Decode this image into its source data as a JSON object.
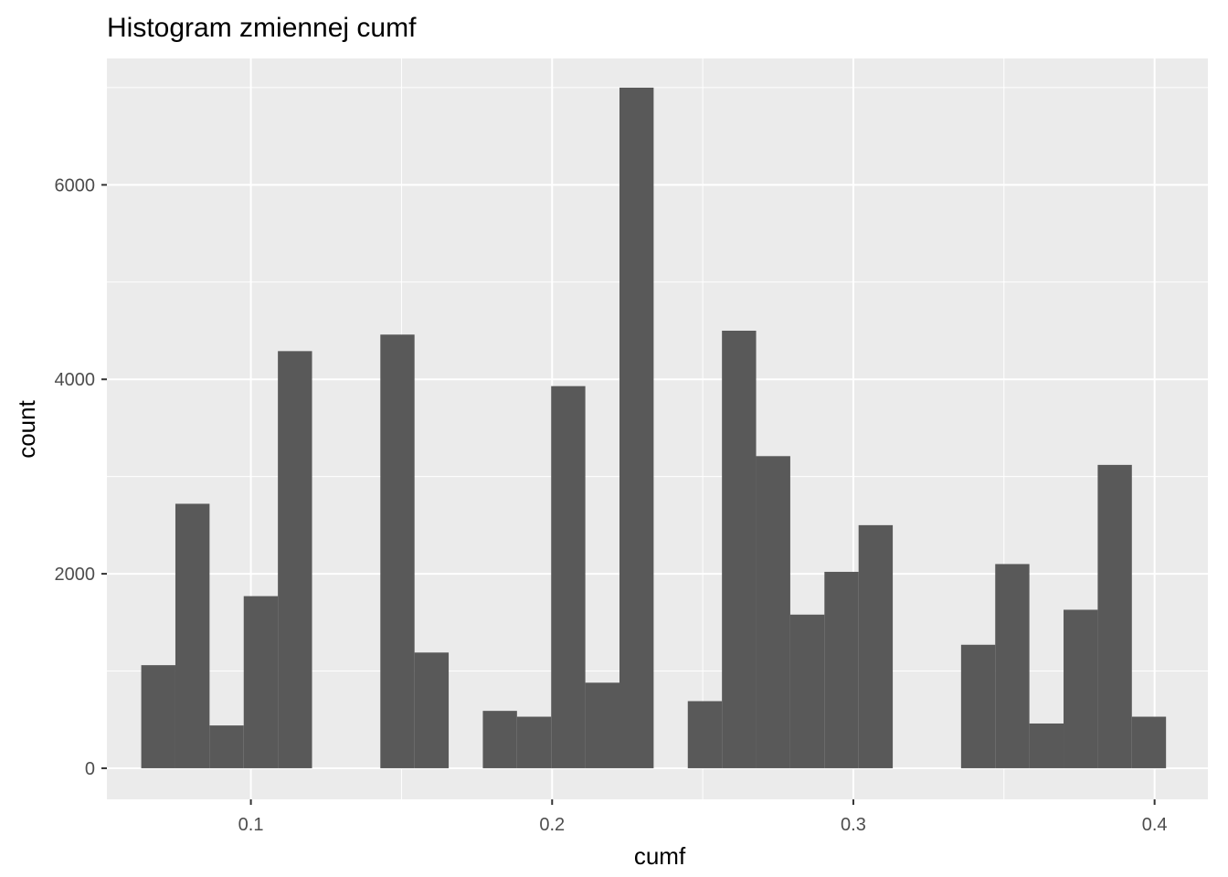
{
  "chart_data": {
    "type": "bar",
    "title": "Histogram zmiennej  cumf",
    "xlabel": "cumf",
    "ylabel": "count",
    "xlim": [
      0.0522,
      0.4177
    ],
    "ylim": [
      -320,
      7300
    ],
    "x_ticks": [
      0.1,
      0.2,
      0.3,
      0.4
    ],
    "x_tick_labels": [
      "0.1",
      "0.2",
      "0.3",
      "0.4"
    ],
    "y_ticks": [
      0,
      2000,
      4000,
      6000
    ],
    "y_tick_labels": [
      "0",
      "2000",
      "4000",
      "6000"
    ],
    "bin_width": 0.01134,
    "first_bin_start": 0.0636,
    "values": [
      1060,
      2720,
      440,
      1770,
      4290,
      0,
      0,
      4460,
      1190,
      0,
      590,
      530,
      3930,
      880,
      7000,
      0,
      690,
      4500,
      3210,
      1580,
      2020,
      2500,
      0,
      0,
      1270,
      2100,
      460,
      1630,
      3120,
      530
    ],
    "fill_color": "#595959",
    "panel_background": "#ebebeb",
    "grid_color": "#ffffff",
    "grid": true,
    "legend": "none"
  }
}
